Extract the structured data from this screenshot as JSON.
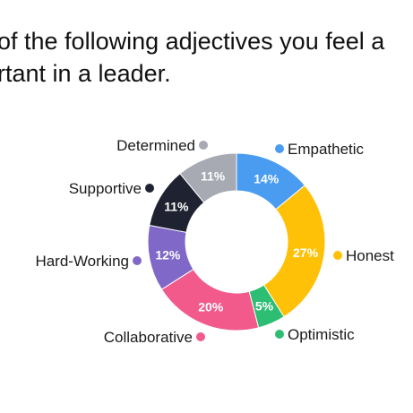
{
  "question": {
    "line1": "of the following adjectives you feel a",
    "line2": "rtant in a leader."
  },
  "chart_data": {
    "type": "pie",
    "donut": true,
    "categories": [
      "Empathetic",
      "Honest",
      "Optimistic",
      "Collaborative",
      "Hard-Working",
      "Supportive",
      "Determined"
    ],
    "values": [
      14,
      27,
      5,
      20,
      12,
      11,
      11
    ],
    "labels": [
      "14%",
      "27%",
      "5%",
      "20%",
      "12%",
      "11%",
      "11%"
    ],
    "colors": [
      "#4a9cf0",
      "#ffc107",
      "#2dbd73",
      "#f25a8c",
      "#7f68c7",
      "#1f2230",
      "#a7aab2"
    ],
    "start": "12 o'clock",
    "direction": "clockwise",
    "legend": "around-chart"
  }
}
